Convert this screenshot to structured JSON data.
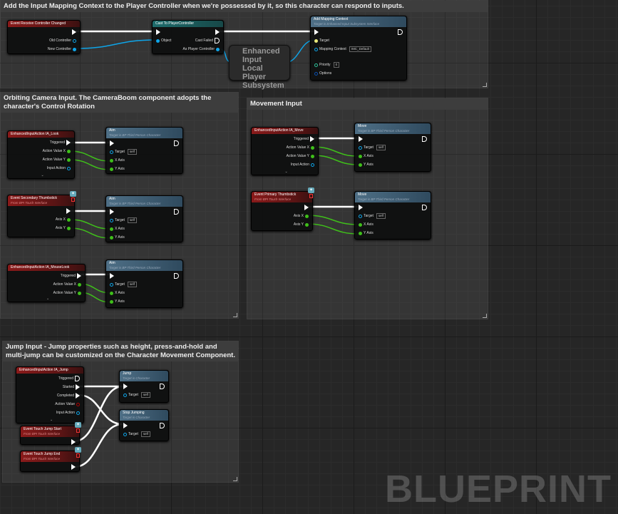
{
  "comments": [
    {
      "text": "Add the Input Mapping Context to the Player Controller when we're possessed by it, so this character can respond to inputs."
    },
    {
      "text": "Orbiting Camera Input. The CameraBoom component adopts the character's Control Rotation"
    },
    {
      "text": "Movement Input"
    },
    {
      "text": "Jump Input - Jump properties such as height, press-and-hold and multi-jump can be customized on the Character Movement Component."
    }
  ],
  "subsystem_node": {
    "label": "Enhanced Input Local Player Subsystem"
  },
  "watermark": "BLUEPRINT",
  "colors": {
    "exec": "#ffffff",
    "object": "#0ea5e9",
    "float": "#3fbf1a",
    "event_header": "#8a1a1a",
    "function_header": "#4e6f86"
  },
  "nodes": [
    {
      "title": "Event Receive Controller Changed",
      "type": "event",
      "outs": [
        {
          "kind": "exec"
        },
        {
          "label": "Old Controller",
          "kind": "object-empty"
        },
        {
          "label": "New Controller",
          "kind": "object"
        }
      ]
    },
    {
      "title": "Cast To PlayerController",
      "type": "cast",
      "ins": [
        {
          "kind": "exec"
        },
        {
          "label": "Object",
          "kind": "object"
        }
      ],
      "outs": [
        {
          "kind": "exec"
        },
        {
          "label": "Cast Failed",
          "kind": "exec-empty"
        },
        {
          "label": "As Player Controller",
          "kind": "object"
        }
      ]
    },
    {
      "title": "Add Mapping Context",
      "subtitle": "Target is Enhanced Input Subsystem Interface",
      "type": "func",
      "ins": [
        {
          "kind": "exec"
        },
        {
          "label": "Target",
          "kind": "target"
        },
        {
          "label": "Mapping Context",
          "kind": "object-empty",
          "value": "IMC_Default"
        },
        {
          "label": "Priority",
          "kind": "int",
          "value": "0"
        },
        {
          "label": "Options",
          "kind": "struct"
        }
      ],
      "outs": [
        {
          "kind": "exec-empty"
        }
      ]
    },
    {
      "title": "EnhancedInputAction IA_Look",
      "type": "event",
      "outs": [
        {
          "label": "Triggered",
          "kind": "exec"
        },
        {
          "label": "Action Value X",
          "kind": "float"
        },
        {
          "label": "Action Value Y",
          "kind": "float"
        },
        {
          "label": "Input Action",
          "kind": "object-empty"
        }
      ]
    },
    {
      "title": "Aim",
      "subtitle": "Target is BP Third Person Character",
      "type": "func",
      "ins": [
        {
          "kind": "exec"
        },
        {
          "label": "Target",
          "kind": "object-empty",
          "value": "self"
        },
        {
          "label": "X Axis",
          "kind": "float"
        },
        {
          "label": "Y Axis",
          "kind": "float"
        }
      ],
      "outs": [
        {
          "kind": "exec-empty"
        }
      ]
    },
    {
      "title": "Event Secondary Thumbstick",
      "subtitle": "From BPI Touch Interface",
      "type": "event",
      "outs": [
        {
          "kind": "exec"
        },
        {
          "label": "Axis X",
          "kind": "float"
        },
        {
          "label": "Axis Y",
          "kind": "float"
        }
      ]
    },
    {
      "title": "Aim",
      "subtitle": "Target is BP Third Person Character",
      "type": "func",
      "ins": [
        {
          "kind": "exec"
        },
        {
          "label": "Target",
          "kind": "object-empty",
          "value": "self"
        },
        {
          "label": "X Axis",
          "kind": "float"
        },
        {
          "label": "Y Axis",
          "kind": "float"
        }
      ],
      "outs": [
        {
          "kind": "exec-empty"
        }
      ]
    },
    {
      "title": "EnhancedInputAction IA_MouseLook",
      "type": "event",
      "outs": [
        {
          "label": "Triggered",
          "kind": "exec"
        },
        {
          "label": "Action Value X",
          "kind": "float"
        },
        {
          "label": "Action Value Y",
          "kind": "float"
        }
      ]
    },
    {
      "title": "Aim",
      "subtitle": "Target is BP Third Person Character",
      "type": "func",
      "ins": [
        {
          "kind": "exec"
        },
        {
          "label": "Target",
          "kind": "object-empty",
          "value": "self"
        },
        {
          "label": "X Axis",
          "kind": "float"
        },
        {
          "label": "Y Axis",
          "kind": "float"
        }
      ],
      "outs": [
        {
          "kind": "exec-empty"
        }
      ]
    },
    {
      "title": "EnhancedInputAction IA_Move",
      "type": "event",
      "outs": [
        {
          "label": "Triggered",
          "kind": "exec"
        },
        {
          "label": "Action Value X",
          "kind": "float"
        },
        {
          "label": "Action Value Y",
          "kind": "float"
        },
        {
          "label": "Input Action",
          "kind": "object-empty"
        }
      ]
    },
    {
      "title": "Move",
      "subtitle": "Target is BP Third Person Character",
      "type": "func",
      "ins": [
        {
          "kind": "exec"
        },
        {
          "label": "Target",
          "kind": "object-empty",
          "value": "self"
        },
        {
          "label": "X Axis",
          "kind": "float"
        },
        {
          "label": "Y Axis",
          "kind": "float"
        }
      ],
      "outs": [
        {
          "kind": "exec-empty"
        }
      ]
    },
    {
      "title": "Event Primary Thumbstick",
      "subtitle": "From BPI Touch Interface",
      "type": "event",
      "outs": [
        {
          "kind": "exec"
        },
        {
          "label": "Axis X",
          "kind": "float"
        },
        {
          "label": "Axis Y",
          "kind": "float"
        }
      ]
    },
    {
      "title": "Move",
      "subtitle": "Target is BP Third Person Character",
      "type": "func",
      "ins": [
        {
          "kind": "exec"
        },
        {
          "label": "Target",
          "kind": "object-empty",
          "value": "self"
        },
        {
          "label": "X Axis",
          "kind": "float"
        },
        {
          "label": "Y Axis",
          "kind": "float"
        }
      ],
      "outs": [
        {
          "kind": "exec-empty"
        }
      ]
    },
    {
      "title": "EnhancedInputAction IA_Jump",
      "type": "event",
      "outs": [
        {
          "label": "Triggered",
          "kind": "exec-empty"
        },
        {
          "label": "Started",
          "kind": "exec"
        },
        {
          "label": "Completed",
          "kind": "exec"
        },
        {
          "label": "Action Value",
          "kind": "bool-empty"
        },
        {
          "label": "Input Action",
          "kind": "object-empty"
        }
      ]
    },
    {
      "title": "Jump",
      "subtitle": "Target is Character",
      "type": "func",
      "ins": [
        {
          "kind": "exec"
        },
        {
          "label": "Target",
          "kind": "object-empty",
          "value": "self"
        }
      ],
      "outs": [
        {
          "kind": "exec-empty"
        }
      ]
    },
    {
      "title": "Stop Jumping",
      "subtitle": "Target is Character",
      "type": "func",
      "ins": [
        {
          "kind": "exec"
        },
        {
          "label": "Target",
          "kind": "object-empty",
          "value": "self"
        }
      ],
      "outs": [
        {
          "kind": "exec-empty"
        }
      ]
    },
    {
      "title": "Event Touch Jump Start",
      "subtitle": "From BPI Touch Interface",
      "type": "event",
      "outs": [
        {
          "kind": "exec"
        }
      ]
    },
    {
      "title": "Event Touch Jump End",
      "subtitle": "From BPI Touch Interface",
      "type": "event",
      "outs": [
        {
          "kind": "exec"
        }
      ]
    }
  ]
}
